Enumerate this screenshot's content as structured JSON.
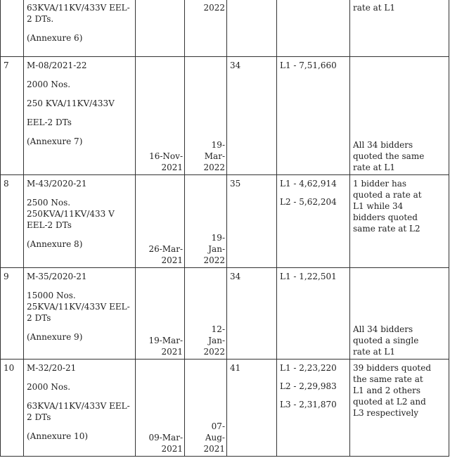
{
  "rows": [
    {
      "sno": "",
      "tender": [
        "63KVA/11KV/433V EEL-2 DTs.",
        "(Annexure 6)"
      ],
      "nit_date": [],
      "opening_date": [
        "2022"
      ],
      "bidders": "",
      "rates": [],
      "remarks": [
        "rate at L1"
      ],
      "remarks_bottom": false,
      "date_top": true
    },
    {
      "sno": "7",
      "tender": [
        "M-08/2021-22",
        "2000 Nos.",
        "250 KVA/11KV/433V",
        "EEL-2 DTs",
        "(Annexure 7)"
      ],
      "nit_date": [
        "16-Nov-",
        "2021"
      ],
      "opening_date": [
        "19-",
        "Mar-",
        "2022"
      ],
      "bidders": "34",
      "rates": [
        "L1 - 7,51,660"
      ],
      "remarks": [
        "All 34 bidders",
        "quoted the same",
        "rate at L1"
      ],
      "remarks_bottom": true
    },
    {
      "sno": "8",
      "tender": [
        "M-43/2020-21",
        "2500 Nos. 250KVA/11KV/433 V EEL-2 DTs",
        "(Annexure 8)"
      ],
      "nit_date": [
        "26-Mar-",
        "2021"
      ],
      "opening_date": [
        "19-",
        "Jan-",
        "2022"
      ],
      "bidders": "35",
      "rates": [
        "L1 - 4,62,914",
        "L2 - 5,62,204"
      ],
      "remarks": [
        "1 bidder has",
        "quoted a rate at",
        "L1 while 34",
        "bidders quoted",
        "same rate at L2"
      ],
      "remarks_bottom": false
    },
    {
      "sno": "9",
      "tender": [
        "M-35/2020-21",
        "15000 Nos. 25KVA/11KV/433V EEL-2 DTs",
        "(Annexure 9)"
      ],
      "nit_date": [
        "19-Mar-",
        "2021"
      ],
      "opening_date": [
        "12-",
        "Jan-",
        "2022"
      ],
      "bidders": "34",
      "rates": [
        "L1 - 1,22,501"
      ],
      "remarks": [
        "All 34 bidders",
        "quoted a single",
        "rate at L1"
      ],
      "remarks_bottom": true
    },
    {
      "sno": "10",
      "tender": [
        "M-32/20-21",
        "2000 Nos.",
        "63KVA/11KV/433V EEL-2 DTs",
        "(Annexure 10)"
      ],
      "nit_date": [
        "09-Mar-",
        "2021"
      ],
      "opening_date": [
        "07-",
        "Aug-",
        "2021"
      ],
      "bidders": "41",
      "rates": [
        "L1 - 2,23,220",
        "L2 - 2,29,983",
        "L3 - 2,31,870"
      ],
      "remarks": [
        "39 bidders quoted",
        "the same rate at",
        "L1 and 2 others",
        "quoted at L2 and",
        "L3 respectively"
      ],
      "remarks_bottom": false
    }
  ]
}
